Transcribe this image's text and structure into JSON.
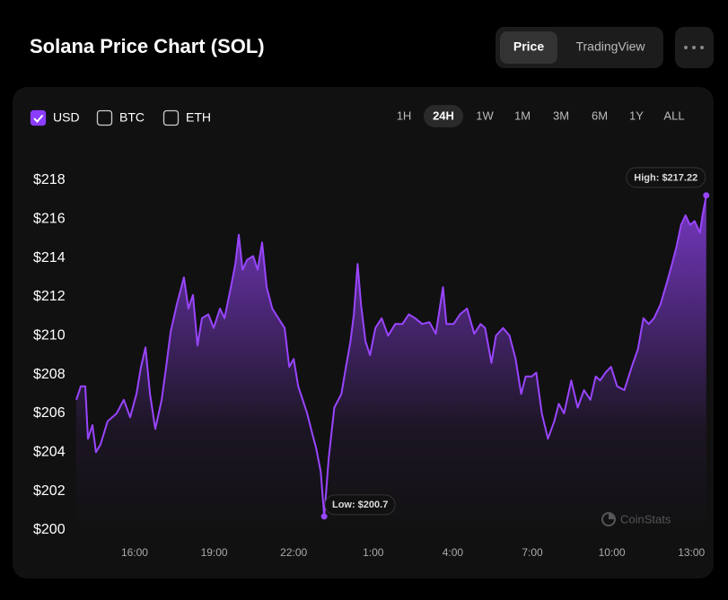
{
  "header": {
    "title": "Solana Price Chart (SOL)",
    "tabs": [
      "Price",
      "TradingView"
    ],
    "active_tab_index": 0
  },
  "currency_toggles": [
    {
      "label": "USD",
      "checked": true
    },
    {
      "label": "BTC",
      "checked": false
    },
    {
      "label": "ETH",
      "checked": false
    }
  ],
  "ranges": [
    "1H",
    "24H",
    "1W",
    "1M",
    "3M",
    "6M",
    "1Y",
    "ALL"
  ],
  "active_range_index": 1,
  "watermark": "CoinStats",
  "chart_data": {
    "type": "line",
    "color": "#9945ff",
    "x": [
      13.8,
      13.97,
      14.14,
      14.24,
      14.41,
      14.54,
      14.71,
      14.98,
      15.32,
      15.59,
      15.83,
      16.07,
      16.24,
      16.41,
      16.58,
      16.78,
      17.02,
      17.19,
      17.36,
      17.59,
      17.86,
      18.03,
      18.2,
      18.37,
      18.54,
      18.78,
      18.98,
      19.22,
      19.39,
      19.63,
      19.8,
      19.93,
      20.07,
      20.24,
      20.47,
      20.64,
      20.81,
      20.98,
      21.19,
      21.42,
      21.66,
      21.83,
      22.0,
      22.17,
      22.34,
      22.51,
      22.71,
      22.85,
      23.02,
      23.15,
      23.32,
      23.53,
      23.8,
      23.97,
      24.14,
      24.27,
      24.41,
      24.54,
      24.71,
      24.88,
      25.08,
      25.32,
      25.56,
      25.83,
      26.1,
      26.34,
      26.58,
      26.85,
      27.12,
      27.36,
      27.63,
      27.76,
      28.03,
      28.27,
      28.54,
      28.81,
      29.05,
      29.22,
      29.46,
      29.63,
      29.9,
      30.14,
      30.37,
      30.58,
      30.75,
      30.98,
      31.15,
      31.36,
      31.59,
      31.83,
      32.0,
      32.2,
      32.47,
      32.71,
      32.95,
      33.19,
      33.39,
      33.56,
      33.76,
      33.97,
      34.2,
      34.47,
      34.75,
      34.98,
      35.19,
      35.39,
      35.59,
      35.83,
      36.07,
      36.27,
      36.44,
      36.61,
      36.78,
      36.95,
      37.12,
      37.32,
      37.42,
      37.56
    ],
    "values": [
      206.7,
      207.4,
      207.4,
      204.7,
      205.4,
      204.0,
      204.4,
      205.6,
      206.0,
      206.7,
      205.8,
      207.0,
      208.4,
      209.4,
      207.0,
      205.2,
      206.7,
      208.4,
      210.2,
      211.6,
      213.0,
      211.4,
      212.1,
      209.5,
      210.9,
      211.1,
      210.4,
      211.4,
      210.9,
      212.5,
      213.7,
      215.2,
      213.4,
      213.9,
      214.1,
      213.4,
      214.8,
      212.5,
      211.4,
      210.9,
      210.4,
      208.4,
      208.8,
      207.4,
      206.7,
      206.0,
      204.9,
      204.2,
      203.0,
      200.7,
      203.7,
      206.3,
      207.0,
      208.4,
      209.7,
      211.1,
      213.7,
      211.6,
      209.7,
      209.0,
      210.4,
      210.9,
      210.0,
      210.6,
      210.6,
      211.1,
      210.9,
      210.6,
      210.7,
      210.1,
      212.5,
      210.6,
      210.6,
      211.1,
      211.4,
      210.1,
      210.6,
      210.4,
      208.6,
      210.0,
      210.4,
      210.0,
      208.8,
      207.0,
      207.9,
      207.9,
      208.1,
      206.0,
      204.7,
      205.6,
      206.5,
      206.0,
      207.7,
      206.3,
      207.2,
      206.7,
      207.9,
      207.7,
      208.1,
      208.4,
      207.4,
      207.2,
      208.4,
      209.3,
      210.9,
      210.6,
      210.9,
      211.6,
      212.7,
      213.7,
      214.6,
      215.7,
      216.2,
      215.7,
      215.9,
      215.3,
      216.2,
      217.22
    ],
    "xlim": [
      13.8,
      37.67
    ],
    "ylim": [
      200,
      218
    ],
    "xticks": [
      {
        "value": 16,
        "label": "16:00"
      },
      {
        "value": 19,
        "label": "19:00"
      },
      {
        "value": 22,
        "label": "22:00"
      },
      {
        "value": 25,
        "label": "1:00"
      },
      {
        "value": 28,
        "label": "4:00"
      },
      {
        "value": 31,
        "label": "7:00"
      },
      {
        "value": 34,
        "label": "10:00"
      },
      {
        "value": 37,
        "label": "13:00"
      }
    ],
    "yticks": [
      {
        "value": 200,
        "label": "$200"
      },
      {
        "value": 202,
        "label": "$202"
      },
      {
        "value": 204,
        "label": "$204"
      },
      {
        "value": 206,
        "label": "$206"
      },
      {
        "value": 208,
        "label": "$208"
      },
      {
        "value": 210,
        "label": "$210"
      },
      {
        "value": 212,
        "label": "$212"
      },
      {
        "value": 214,
        "label": "$214"
      },
      {
        "value": 216,
        "label": "$216"
      },
      {
        "value": 218,
        "label": "$218"
      }
    ],
    "grid": false,
    "annotations": [
      {
        "text": "High: $217.22",
        "x": 37.56,
        "y": 217.22
      },
      {
        "text": "Low: $200.7",
        "x": 23.15,
        "y": 200.7
      }
    ]
  }
}
